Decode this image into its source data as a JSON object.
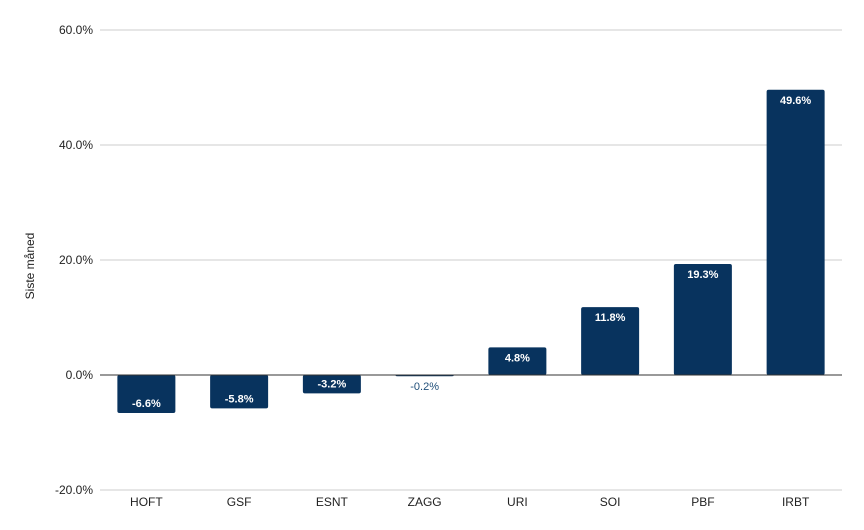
{
  "chart_data": {
    "type": "bar",
    "title": "",
    "xlabel": "",
    "ylabel": "Siste måned",
    "categories": [
      "HOFT",
      "GSF",
      "ESNT",
      "ZAGG",
      "URI",
      "SOI",
      "PBF",
      "IRBT"
    ],
    "values": [
      -6.6,
      -5.8,
      -3.2,
      -0.2,
      4.8,
      11.8,
      19.3,
      49.6
    ],
    "data_labels": [
      "-6.6%",
      "-5.8%",
      "-3.2%",
      "-0.2%",
      "4.8%",
      "11.8%",
      "19.3%",
      "49.6%"
    ],
    "ylim": [
      -20,
      60
    ],
    "yticks": [
      -20,
      0,
      20,
      40,
      60
    ],
    "ytick_labels": [
      "-20.0%",
      "0.0%",
      "20.0%",
      "40.0%",
      "60.0%"
    ],
    "grid": true,
    "bar_color": "#08335e",
    "grid_color": "#cccccc",
    "zero_line_color": "#333333"
  }
}
